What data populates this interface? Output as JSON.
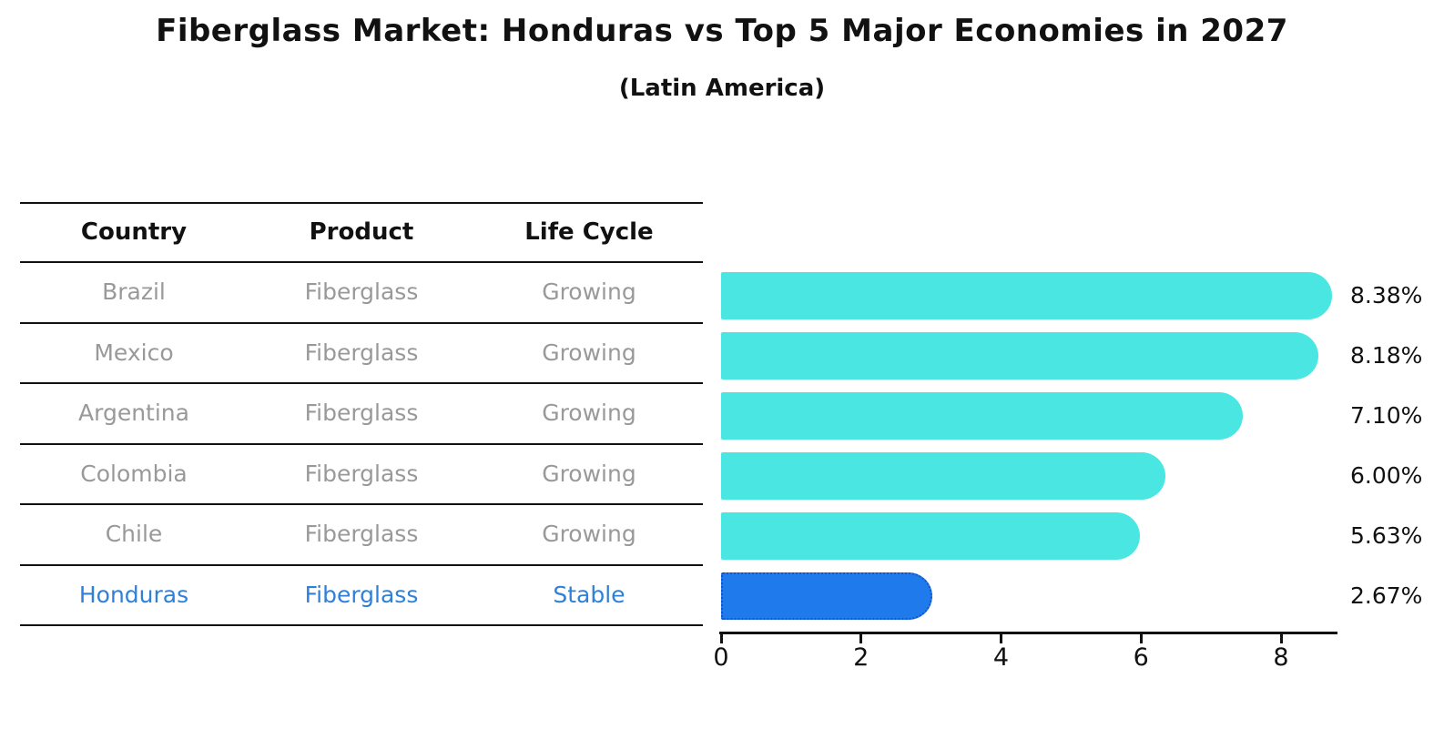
{
  "title": "Fiberglass Market: Honduras vs Top 5 Major Economies in 2027",
  "subtitle": "(Latin America)",
  "table": {
    "headers": [
      "Country",
      "Product",
      "Life Cycle"
    ],
    "rows": [
      {
        "country": "Brazil",
        "product": "Fiberglass",
        "life_cycle": "Growing",
        "highlight": false
      },
      {
        "country": "Mexico",
        "product": "Fiberglass",
        "life_cycle": "Growing",
        "highlight": false
      },
      {
        "country": "Argentina",
        "product": "Fiberglass",
        "life_cycle": "Growing",
        "highlight": false
      },
      {
        "country": "Colombia",
        "product": "Fiberglass",
        "life_cycle": "Growing",
        "highlight": false
      },
      {
        "country": "Chile",
        "product": "Fiberglass",
        "life_cycle": "Growing",
        "highlight": false
      },
      {
        "country": "Honduras",
        "product": "Fiberglass",
        "life_cycle": "Stable",
        "highlight": true
      }
    ]
  },
  "chart_data": {
    "type": "bar",
    "orientation": "horizontal",
    "title": "Fiberglass Market: Honduras vs Top 5 Major Economies in 2027",
    "subtitle": "(Latin America)",
    "categories": [
      "Brazil",
      "Mexico",
      "Argentina",
      "Colombia",
      "Chile",
      "Honduras"
    ],
    "values": [
      8.38,
      8.18,
      7.1,
      6.0,
      5.63,
      2.67
    ],
    "data_labels": [
      "8.38%",
      "8.18%",
      "7.10%",
      "6.00%",
      "5.63%",
      "2.67%"
    ],
    "xlabel": "",
    "ylabel": "",
    "xticks": [
      0,
      2,
      4,
      6,
      8
    ],
    "xlim": [
      0,
      8.8
    ],
    "grid": false,
    "legend": false,
    "highlight_index": 5,
    "highlight_category": "Honduras"
  },
  "colors": {
    "bar": "#4ae6e2",
    "highlight_bar": "#1f7bec",
    "highlight_border": "#1553c8",
    "row_text": "#999999",
    "highlight_text": "#2e80d9",
    "header_text": "#111111",
    "axis": "#111111",
    "background": "#ffffff"
  }
}
